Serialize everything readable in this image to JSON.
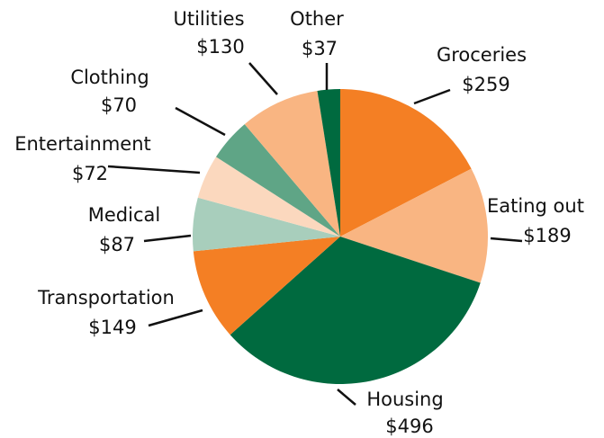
{
  "chart_data": {
    "type": "pie",
    "categories": [
      "Groceries",
      "Eating out",
      "Housing",
      "Transportation",
      "Medical",
      "Entertainment",
      "Clothing",
      "Utilities",
      "Other"
    ],
    "values": [
      259,
      189,
      496,
      149,
      87,
      72,
      70,
      130,
      37
    ],
    "value_labels": [
      "$259",
      "$189",
      "$496",
      "$149",
      "$87",
      "$72",
      "$70",
      "$130",
      "$37"
    ],
    "colors": [
      "#f47f24",
      "#f9b582",
      "#006a3f",
      "#f47f24",
      "#a8cebc",
      "#fbd8be",
      "#5fa586",
      "#f9b582",
      "#006a3f"
    ]
  }
}
